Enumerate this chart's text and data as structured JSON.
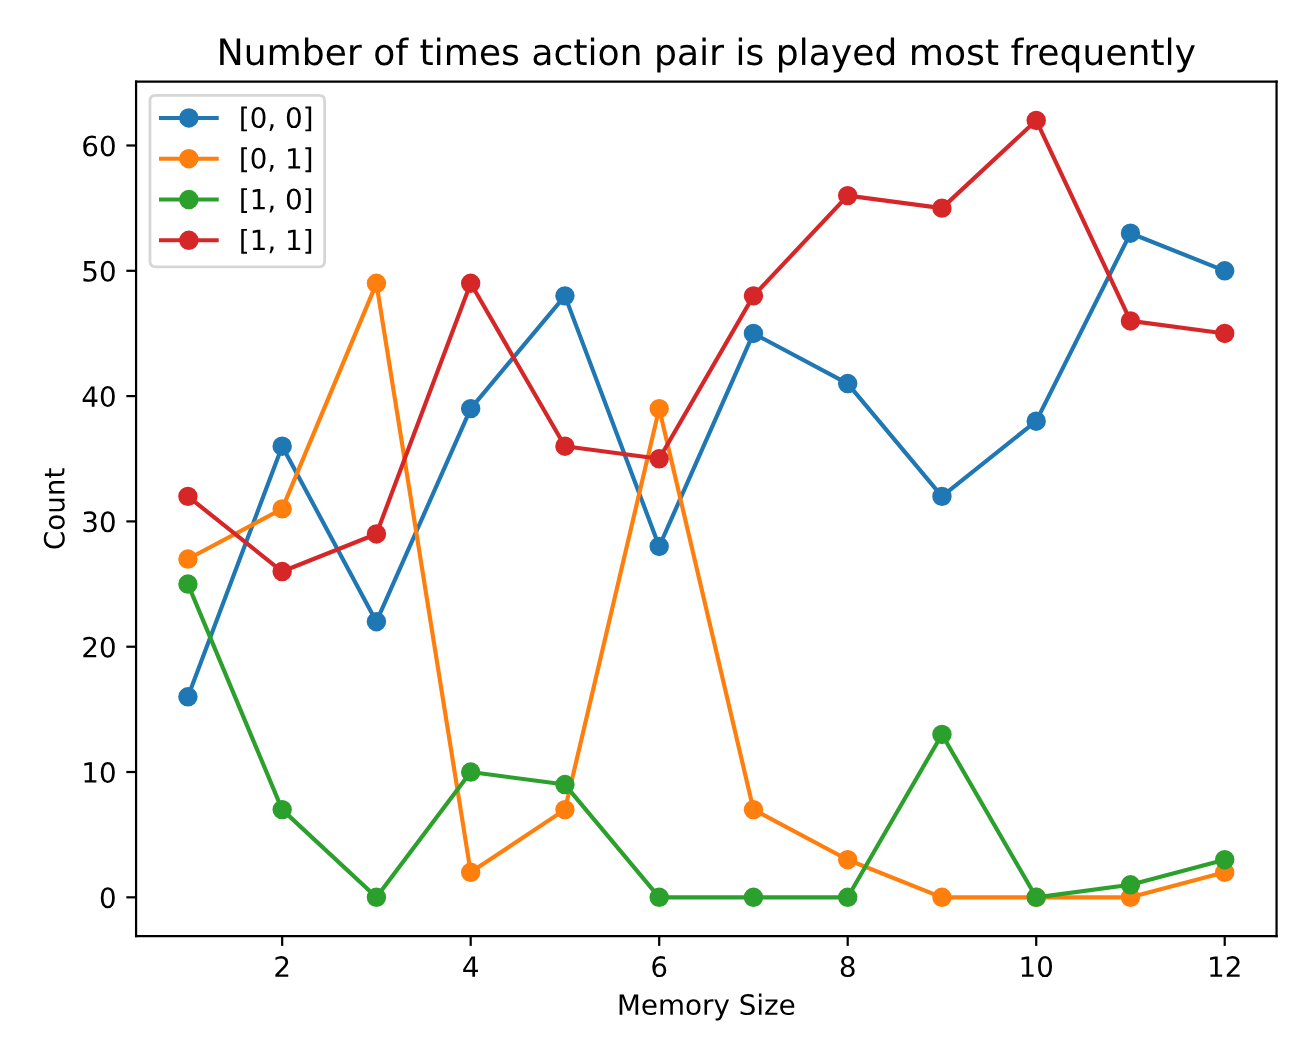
{
  "chart_data": {
    "type": "line",
    "title": "Number of times action pair is played most frequently",
    "xlabel": "Memory Size",
    "ylabel": "Count",
    "x": [
      1,
      2,
      3,
      4,
      5,
      6,
      7,
      8,
      9,
      10,
      11,
      12
    ],
    "series": [
      {
        "name": "[0, 0]",
        "color": "#1f77b4",
        "values": [
          16,
          36,
          22,
          39,
          48,
          28,
          45,
          41,
          32,
          38,
          53,
          50
        ]
      },
      {
        "name": "[0, 1]",
        "color": "#ff7f0e",
        "values": [
          27,
          31,
          49,
          2,
          7,
          39,
          7,
          3,
          0,
          0,
          0,
          2
        ]
      },
      {
        "name": "[1, 0]",
        "color": "#2ca02c",
        "values": [
          25,
          7,
          0,
          10,
          9,
          0,
          0,
          0,
          13,
          0,
          1,
          3
        ]
      },
      {
        "name": "[1, 1]",
        "color": "#d62728",
        "values": [
          32,
          26,
          29,
          49,
          36,
          35,
          48,
          56,
          55,
          62,
          46,
          45
        ]
      }
    ],
    "xlim": [
      0.45,
      12.55
    ],
    "ylim": [
      -3.1,
      65.1
    ],
    "xticks": [
      2,
      4,
      6,
      8,
      10,
      12
    ],
    "yticks": [
      0,
      10,
      20,
      30,
      40,
      50,
      60
    ],
    "marker": "circle",
    "line_style": "solid",
    "legend": "top left",
    "grid": false
  }
}
